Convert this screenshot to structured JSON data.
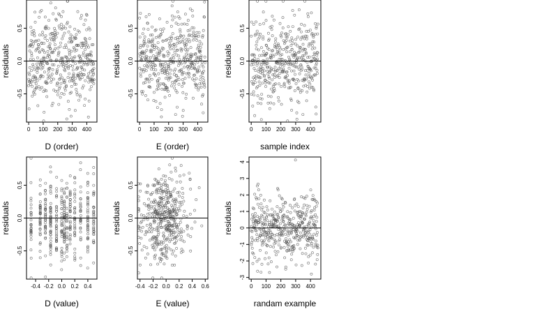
{
  "colors": {
    "point": "#555555",
    "frame": "#000000",
    "zero_line": "#000000",
    "background": "#ffffff"
  },
  "chart_data": [
    {
      "id": "p1",
      "type": "scatter",
      "title": "",
      "xlabel": "D (order)",
      "ylabel": "residuals",
      "xlim": [
        -15,
        470
      ],
      "ylim": [
        -0.93,
        0.93
      ],
      "xticks": [
        0,
        100,
        200,
        300,
        400
      ],
      "xtick_labels": [
        "0",
        "100",
        "200",
        "300",
        "400"
      ],
      "yticks": [
        -0.5,
        0.0,
        0.5
      ],
      "ytick_labels": [
        "-0.5",
        "0.0",
        "0.5"
      ],
      "zero_line": 0,
      "n_points": 450,
      "x_kind": "index",
      "x_range": [
        0,
        450
      ],
      "y_mean": 0.0,
      "y_sd": 0.33,
      "seed": 11,
      "trend_end": -0.25
    },
    {
      "id": "p2",
      "type": "scatter",
      "title": "",
      "xlabel": "E (order)",
      "ylabel": "residuals",
      "xlim": [
        -15,
        470
      ],
      "ylim": [
        -0.93,
        0.93
      ],
      "xticks": [
        0,
        100,
        200,
        300,
        400
      ],
      "xtick_labels": [
        "0",
        "100",
        "200",
        "300",
        "400"
      ],
      "yticks": [
        -0.5,
        0.0,
        0.5
      ],
      "ytick_labels": [
        "-0.5",
        "0.0",
        "0.5"
      ],
      "zero_line": 0,
      "n_points": 450,
      "x_kind": "index",
      "x_range": [
        0,
        450
      ],
      "y_mean": 0.0,
      "y_sd": 0.33,
      "seed": 23,
      "trend_end": 0
    },
    {
      "id": "p3",
      "type": "scatter",
      "title": "",
      "xlabel": "sample index",
      "ylabel": "residuals",
      "xlim": [
        -15,
        470
      ],
      "ylim": [
        -0.93,
        0.93
      ],
      "xticks": [
        0,
        100,
        200,
        300,
        400
      ],
      "xtick_labels": [
        "0",
        "100",
        "200",
        "300",
        "400"
      ],
      "yticks": [
        -0.5,
        0.0,
        0.5
      ],
      "ytick_labels": [
        "-0.5",
        "0.0",
        "0.5"
      ],
      "zero_line": 0,
      "n_points": 450,
      "x_kind": "index",
      "x_range": [
        0,
        450
      ],
      "y_mean": 0.0,
      "y_sd": 0.33,
      "seed": 37,
      "trend_end": 0
    },
    {
      "id": "p4",
      "type": "scatter",
      "title": "",
      "xlabel": "D (value)",
      "ylabel": "residuals",
      "xlim": [
        -0.54,
        0.54
      ],
      "ylim": [
        -0.93,
        0.93
      ],
      "xticks": [
        -0.4,
        -0.2,
        0.0,
        0.2,
        0.4
      ],
      "xtick_labels": [
        "-0.4",
        "-0.2",
        "0.0",
        "0.2",
        "0.4"
      ],
      "yticks": [
        -0.5,
        0.0,
        0.5
      ],
      "ytick_labels": [
        "-0.5",
        "0.0",
        "0.5"
      ],
      "zero_line": 0,
      "n_points": 450,
      "x_kind": "discrete",
      "x_levels": [
        -0.47,
        -0.33,
        -0.25,
        -0.17,
        -0.08,
        0.0,
        0.04,
        0.08,
        0.13,
        0.2,
        0.29,
        0.4,
        0.49
      ],
      "y_mean": 0.0,
      "y_sd": 0.33,
      "seed": 41,
      "trend_end": 0
    },
    {
      "id": "p5",
      "type": "scatter",
      "title": "",
      "xlabel": "E (value)",
      "ylabel": "residuals",
      "xlim": [
        -0.44,
        0.64
      ],
      "ylim": [
        -0.93,
        0.93
      ],
      "xticks": [
        -0.4,
        -0.2,
        0.0,
        0.2,
        0.4,
        0.6
      ],
      "xtick_labels": [
        "-0.4",
        "-0.2",
        "0.0",
        "0.2",
        "0.4",
        "0.6"
      ],
      "yticks": [
        -0.5,
        0.0,
        0.5
      ],
      "ytick_labels": [
        "-0.5",
        "0.0",
        "0.5"
      ],
      "zero_line": 0,
      "n_points": 450,
      "x_kind": "normal",
      "x_mean": -0.04,
      "x_sd": 0.18,
      "y_mean": 0.0,
      "y_sd": 0.33,
      "seed": 53,
      "trend_end": 0
    },
    {
      "id": "p6",
      "type": "scatter",
      "title": "",
      "xlabel": "randam example",
      "ylabel": "residuals",
      "xlim": [
        -15,
        470
      ],
      "ylim": [
        -3.1,
        4.3
      ],
      "xticks": [
        0,
        100,
        200,
        300,
        400
      ],
      "xtick_labels": [
        "0",
        "100",
        "200",
        "300",
        "400"
      ],
      "yticks": [
        -3,
        -2,
        -1,
        0,
        1,
        2,
        3,
        4
      ],
      "ytick_labels": [
        "-3",
        "-2",
        "-1",
        "0",
        "1",
        "2",
        "3",
        "4"
      ],
      "zero_line": 0,
      "n_points": 450,
      "x_kind": "index",
      "x_range": [
        0,
        450
      ],
      "y_mean": 0.0,
      "y_sd": 1.0,
      "seed": 67,
      "trend_end": 0
    }
  ]
}
